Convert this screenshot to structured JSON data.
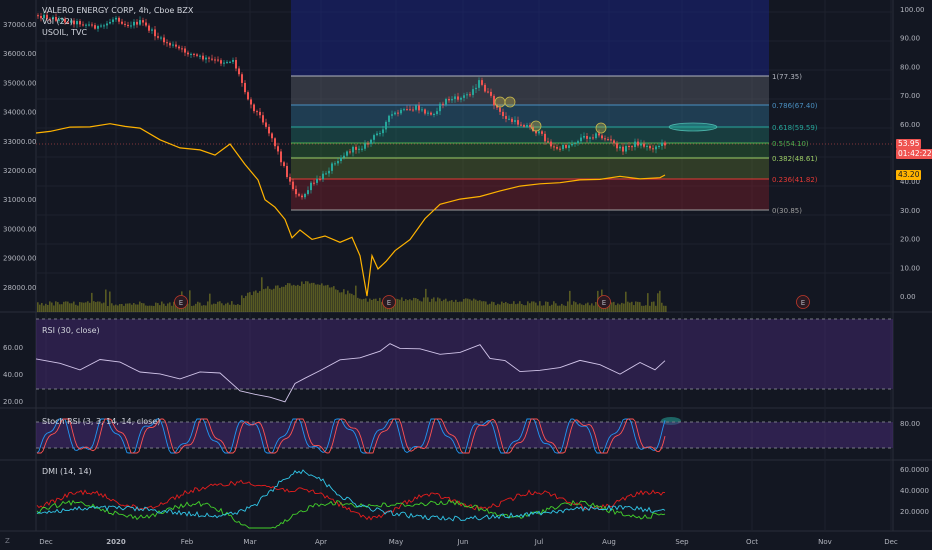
{
  "main": {
    "title": "VALERO ENERGY CORP, 4h, Cboe BZX",
    "vol_label": "Vol (22)",
    "compare_label": "USOIL, TVC",
    "left_ticks": [
      "37000.00",
      "36000.00",
      "35000.00",
      "34000.00",
      "33000.00",
      "32000.00",
      "31000.00",
      "30000.00",
      "29000.00",
      "28000.00"
    ],
    "right_ticks": [
      "100.00",
      "90.00",
      "80.00",
      "70.00",
      "60.00",
      "50.00",
      "40.00",
      "30.00",
      "20.00",
      "10.00",
      "0.00"
    ],
    "price_badge": "53.95",
    "countdown_badge": "01:42:22",
    "usoil_badge": "43.20",
    "earnings_marker": "E",
    "fib_levels": [
      {
        "label": "1(77.35)",
        "color": "#b2b5be"
      },
      {
        "label": "0.786(67.40)",
        "color": "#4a90c2"
      },
      {
        "label": "0.618(59.59)",
        "color": "#26a69a"
      },
      {
        "label": "0.5(54.10)",
        "color": "#4caf50"
      },
      {
        "label": "0.382(48.61)",
        "color": "#9ccc65"
      },
      {
        "label": "0.236(41.82)",
        "color": "#e53935"
      },
      {
        "label": "0(30.85)",
        "color": "#9e9e9e"
      }
    ]
  },
  "rsi": {
    "label": "RSI (30, close)",
    "ticks": [
      "60.00",
      "40.00",
      "20.00"
    ]
  },
  "stoch": {
    "label": "Stoch RSI (3, 3, 14, 14, close)",
    "ticks": [
      "80.00"
    ]
  },
  "dmi": {
    "label": "DMI (14, 14)",
    "ticks": [
      "60.0000",
      "40.0000",
      "20.0000"
    ]
  },
  "time_axis": {
    "labels": [
      "Dec",
      "2020",
      "Feb",
      "Mar",
      "Apr",
      "May",
      "Jun",
      "Jul",
      "Aug",
      "Sep",
      "Oct",
      "Nov",
      "Dec"
    ]
  },
  "corner": {
    "zoom_button": "Z"
  },
  "colors": {
    "background": "#131722",
    "bull": "#26a69a",
    "bear": "#ef5350",
    "usoil": "#ffb300",
    "rsi_line": "#d1c4e9",
    "stoch_k": "#2196f3",
    "stoch_d": "#ff5252",
    "dmi_plus": "#43d12b",
    "dmi_minus": "#e51d1d",
    "adx": "#31c6e8",
    "price_badge": "#ef5350",
    "usoil_badge": "#ffb300"
  }
}
